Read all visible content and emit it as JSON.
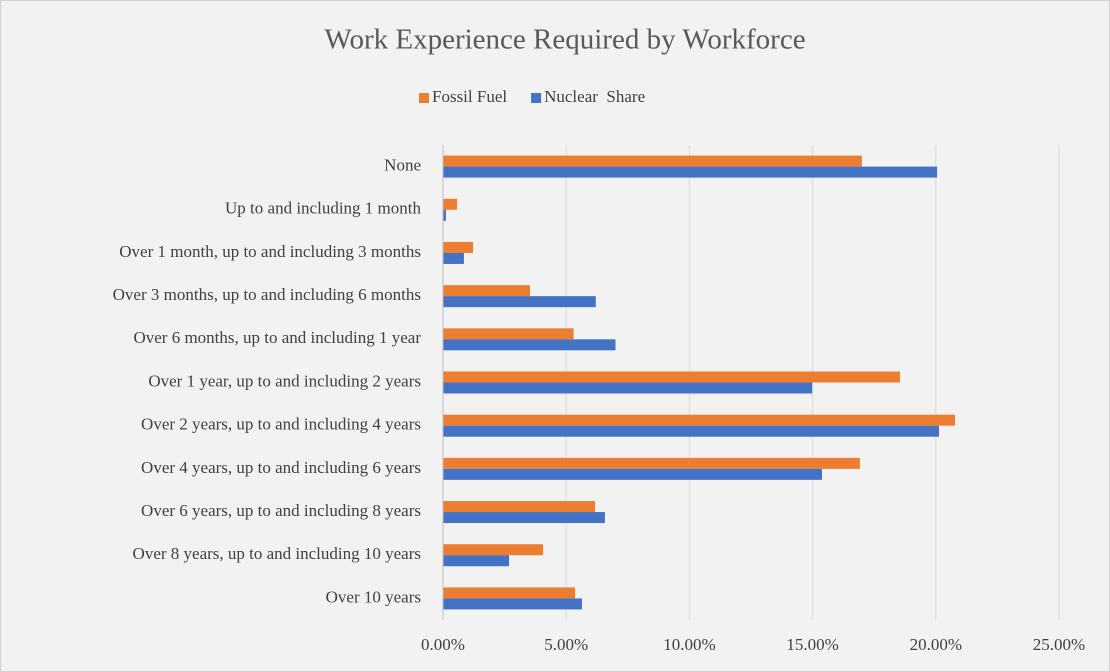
{
  "chart_data": {
    "type": "hbar",
    "title": "Work Experience Required by Workforce",
    "categories": [
      "None",
      "Up to and including 1 month",
      "Over 1 month, up to and including 3 months",
      "Over 3 months, up to and including 6 months",
      "Over 6 months, up to and including 1 year",
      "Over 1 year, up to and including 2 years",
      "Over 2 years, up to and including 4 years",
      "Over 4 years, up to and including 6 years",
      "Over 6 years, up to and including 8 years",
      "Over 8 years, up to and including 10 years",
      "Over 10 years"
    ],
    "series": [
      {
        "name": "Fossil Fuel",
        "color": "#ed7d31",
        "values": [
          17.0,
          0.57,
          1.22,
          3.53,
          5.3,
          18.55,
          20.78,
          16.92,
          6.17,
          4.06,
          5.36
        ]
      },
      {
        "name": "Nuclear  Share",
        "color": "#4472c4",
        "values": [
          20.05,
          0.12,
          0.85,
          6.2,
          7.0,
          14.98,
          20.13,
          15.38,
          6.57,
          2.68,
          5.64
        ]
      }
    ],
    "xlim": [
      0,
      25
    ],
    "xticks": [
      {
        "value": 0,
        "label": "0.00%"
      },
      {
        "value": 5,
        "label": "5.00%"
      },
      {
        "value": 10,
        "label": "10.00%"
      },
      {
        "value": 15,
        "label": "15.00%"
      },
      {
        "value": 20,
        "label": "20.00%"
      },
      {
        "value": 25,
        "label": "25.00%"
      }
    ],
    "grid": true,
    "legend": "top"
  }
}
